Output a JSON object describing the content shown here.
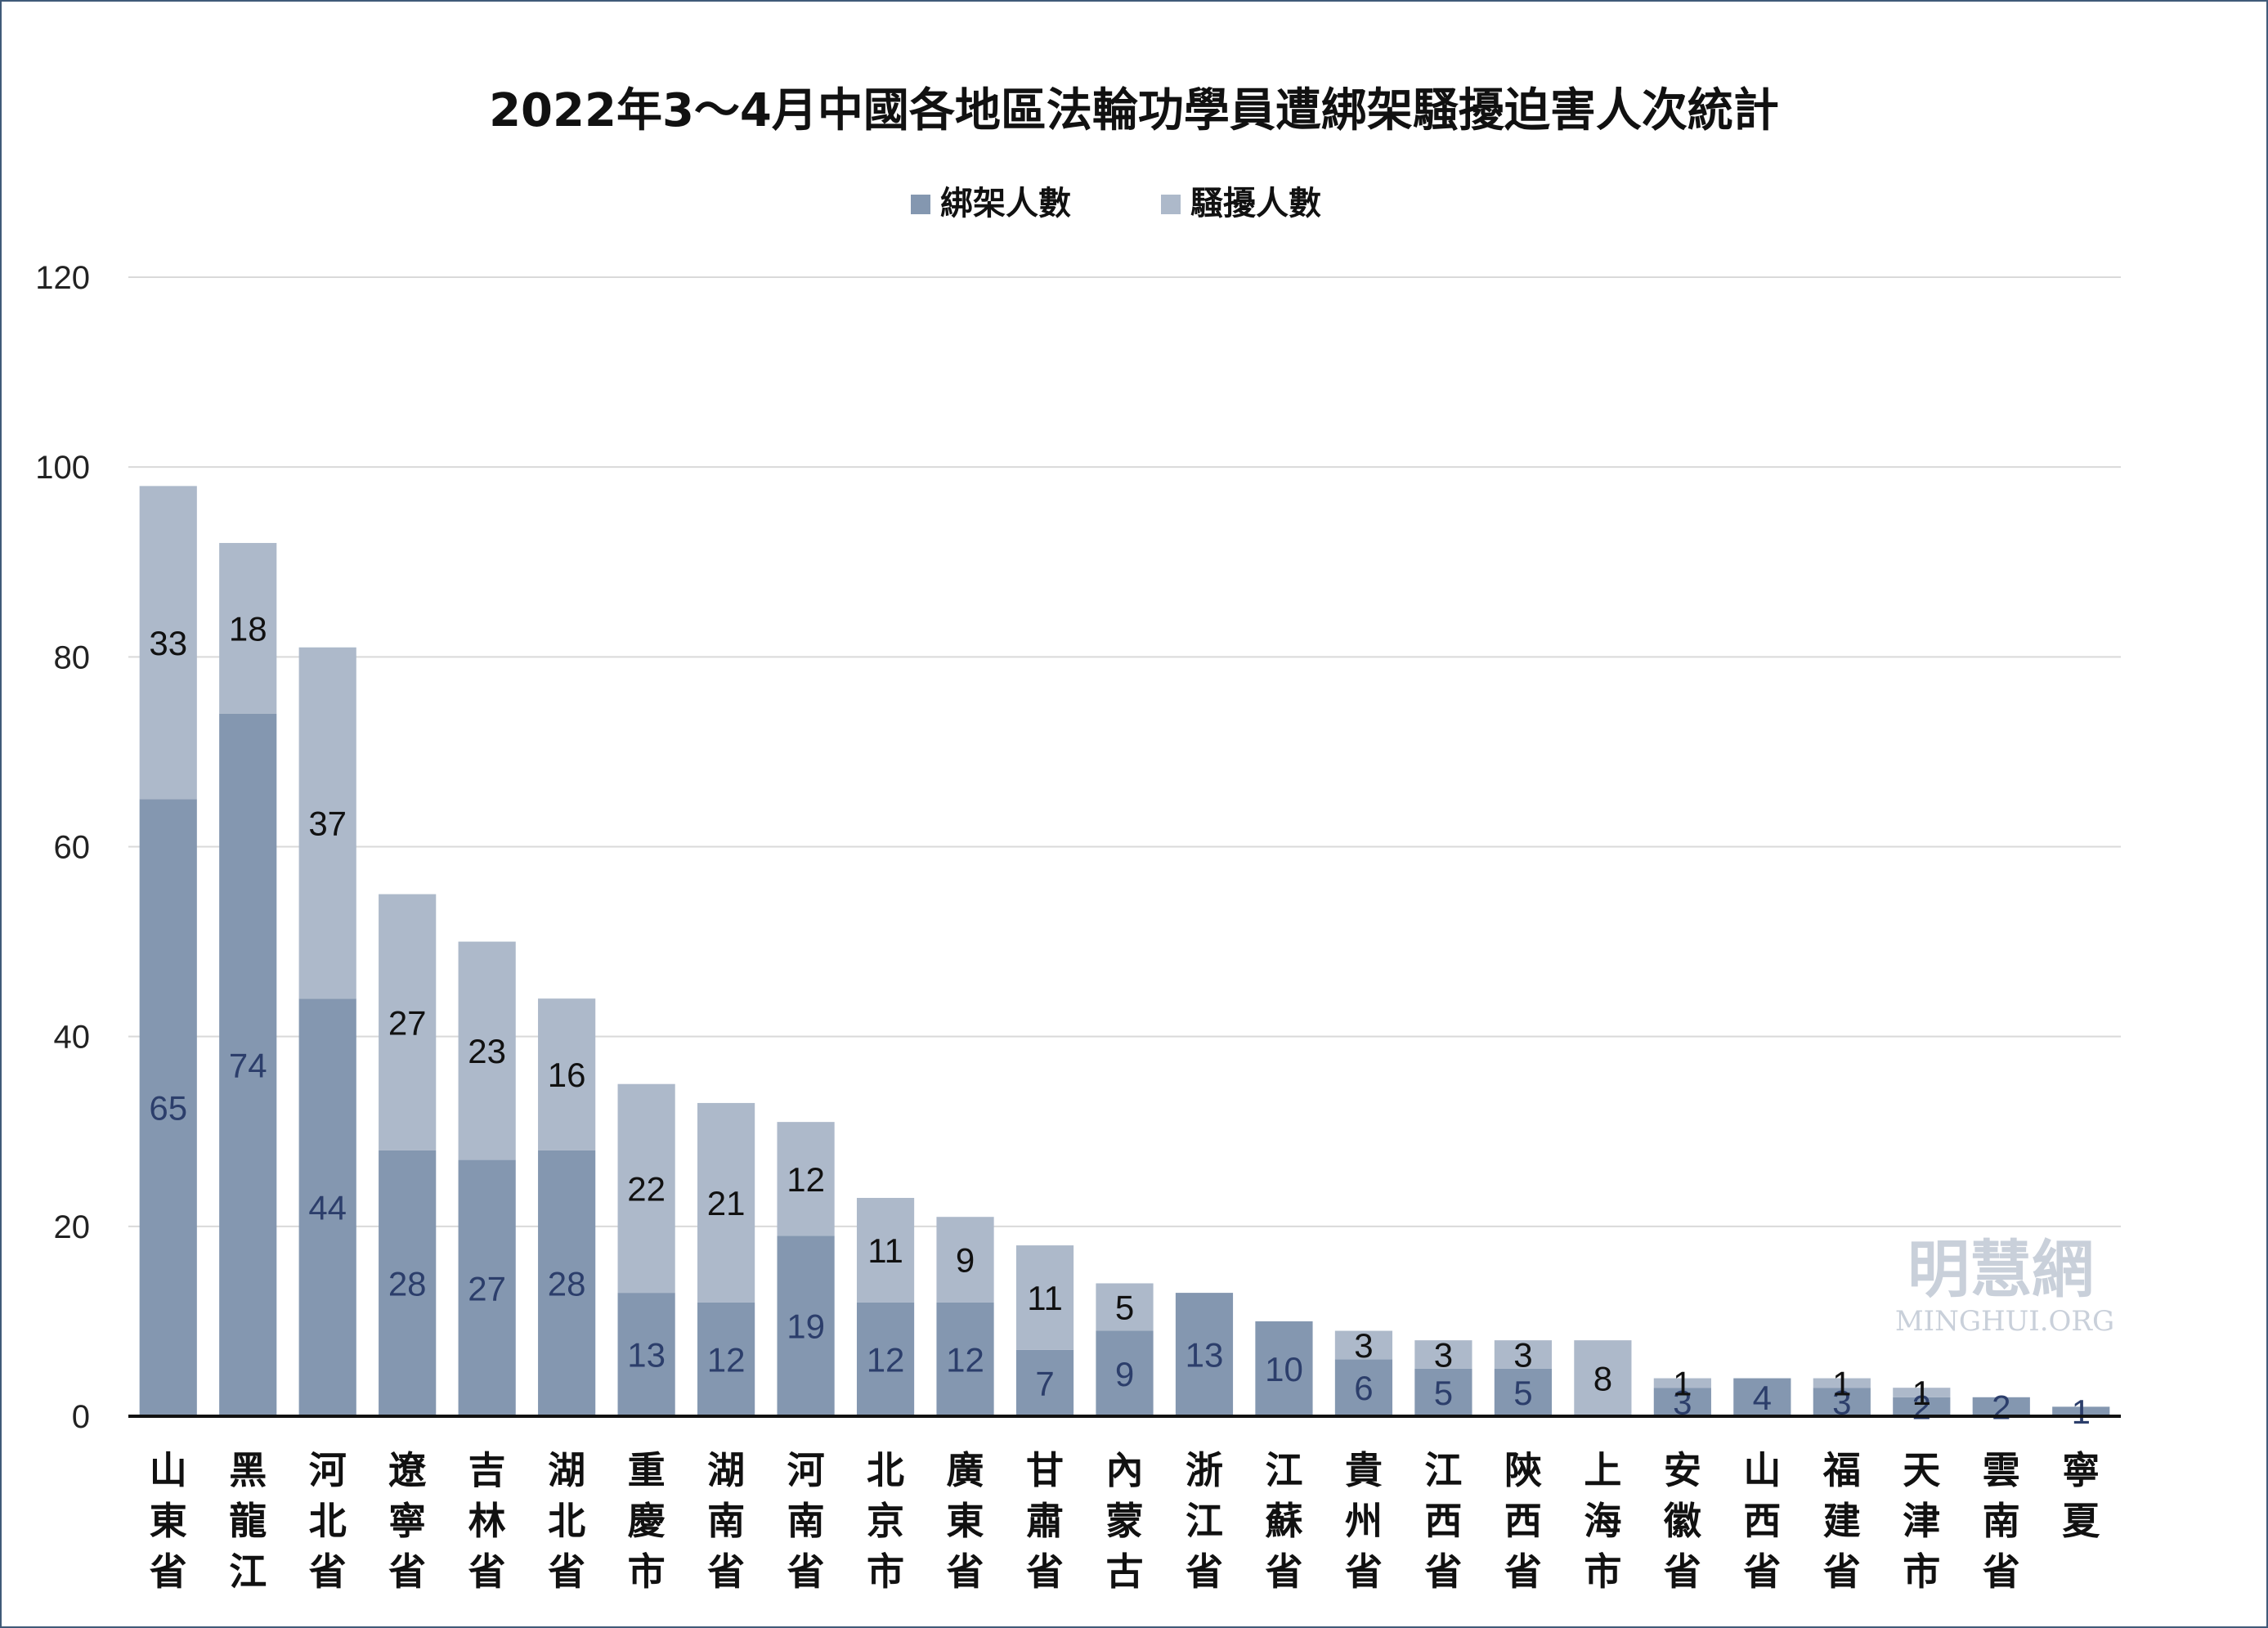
{
  "chart_data": {
    "type": "bar",
    "stacked": true,
    "title": "2022年3～4月中國各地區法輪功學員遭綁架騷擾迫害人次統計",
    "categories": [
      "山東省",
      "黑龍江",
      "河北省",
      "遼寧省",
      "吉林省",
      "湖北省",
      "重慶市",
      "湖南省",
      "河南省",
      "北京市",
      "廣東省",
      "甘肅省",
      "內蒙古",
      "浙江省",
      "江蘇省",
      "貴州省",
      "江西省",
      "陝西省",
      "上海市",
      "安徽省",
      "山西省",
      "福建省",
      "天津市",
      "雲南省",
      "寧夏"
    ],
    "series": [
      {
        "name": "綁架人數",
        "color": "#8497b0",
        "values": [
          65,
          74,
          44,
          28,
          27,
          28,
          13,
          12,
          19,
          12,
          12,
          7,
          9,
          13,
          10,
          6,
          5,
          5,
          0,
          3,
          4,
          3,
          2,
          2,
          1
        ]
      },
      {
        "name": "騷擾人數",
        "color": "#adb9ca",
        "values": [
          33,
          18,
          37,
          27,
          23,
          16,
          22,
          21,
          12,
          11,
          9,
          11,
          5,
          0,
          0,
          3,
          3,
          3,
          8,
          1,
          0,
          1,
          1,
          0,
          0
        ]
      }
    ],
    "yticks": [
      "0",
      "20",
      "40",
      "60",
      "80",
      "100",
      "120"
    ],
    "ylim": [
      0,
      120
    ],
    "grid": true,
    "legend_position": "top-center",
    "xlabel": "",
    "ylabel": ""
  },
  "watermark": {
    "chinese": "明慧網",
    "english": "MINGHUI.ORG"
  }
}
